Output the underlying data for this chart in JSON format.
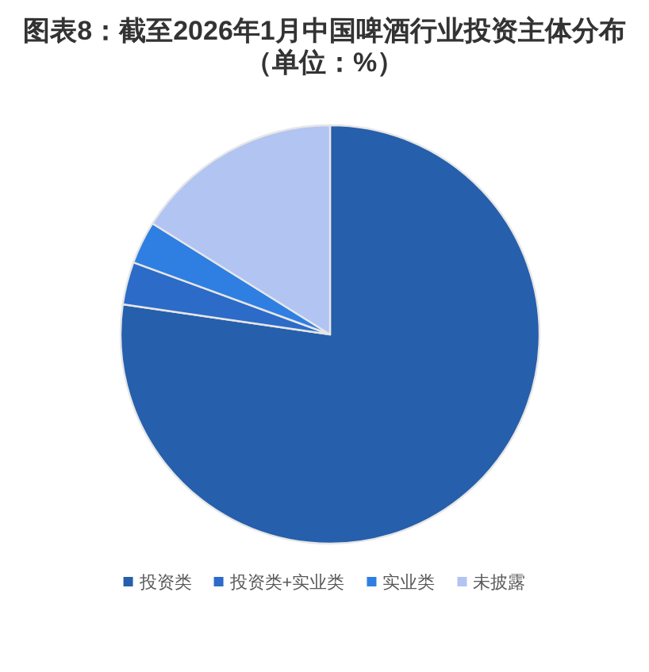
{
  "chart_data": {
    "type": "pie",
    "title": "图表8：截至2026年1月中国啤酒行业投资主体分布",
    "subtitle": "（单位：%）",
    "categories": [
      "投资类",
      "投资类+实业类",
      "实业类",
      "未披露"
    ],
    "values": [
      77.3,
      3.3,
      3.3,
      16.1
    ],
    "colors": [
      "#265fac",
      "#2c6bc8",
      "#2f7fe2",
      "#b1c4f2"
    ],
    "legend": "bottom"
  }
}
